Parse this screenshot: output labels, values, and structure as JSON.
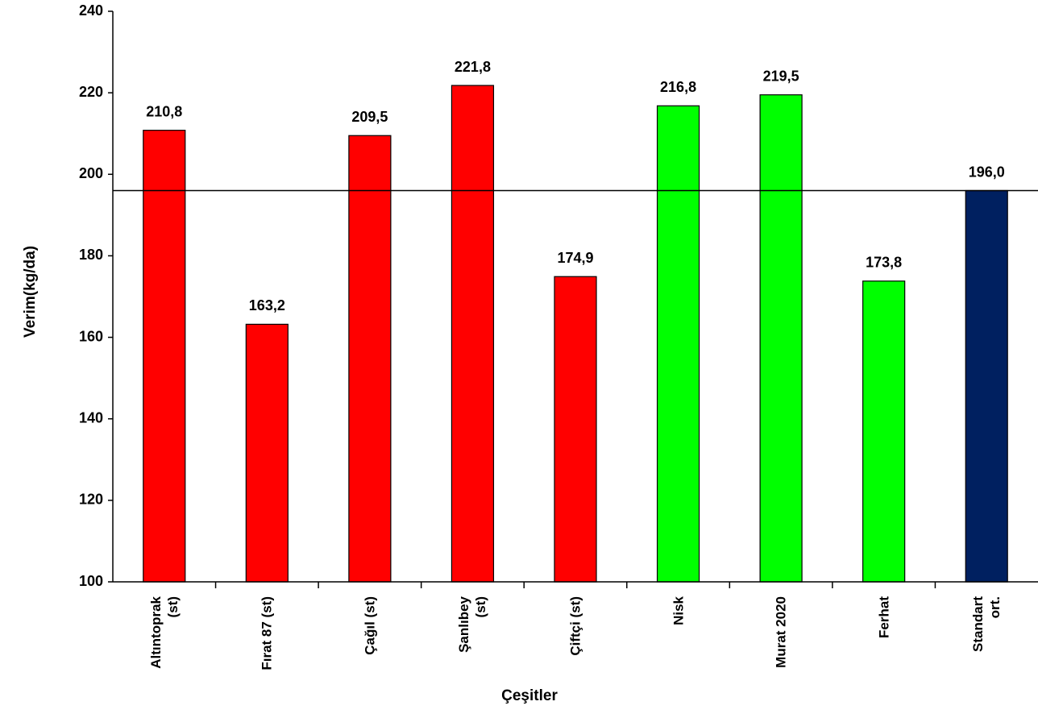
{
  "chart_data": {
    "type": "bar",
    "categories": [
      "Altıntoprak\n(st)",
      "Fırat 87 (st)",
      "Çağıl (st)",
      "Şanlıbey\n(st)",
      "Çiftçi (st)",
      "Nisk",
      "Murat 2020",
      "Ferhat",
      "Standart\nort."
    ],
    "values": [
      210.8,
      163.2,
      209.5,
      221.8,
      174.9,
      216.8,
      219.5,
      173.8,
      196.0
    ],
    "value_labels": [
      "210,8",
      "163,2",
      "209,5",
      "221,8",
      "174,9",
      "216,8",
      "219,5",
      "173,8",
      "196,0"
    ],
    "colors": [
      "#ff0000",
      "#ff0000",
      "#ff0000",
      "#ff0000",
      "#ff0000",
      "#00ff00",
      "#00ff00",
      "#00ff00",
      "#002060"
    ],
    "y_label": "Verim(kg/da)",
    "x_label": "Çeşitler",
    "ylim": [
      100,
      240
    ],
    "yticks": [
      100,
      120,
      140,
      160,
      180,
      200,
      220,
      240
    ],
    "grid": false
  }
}
